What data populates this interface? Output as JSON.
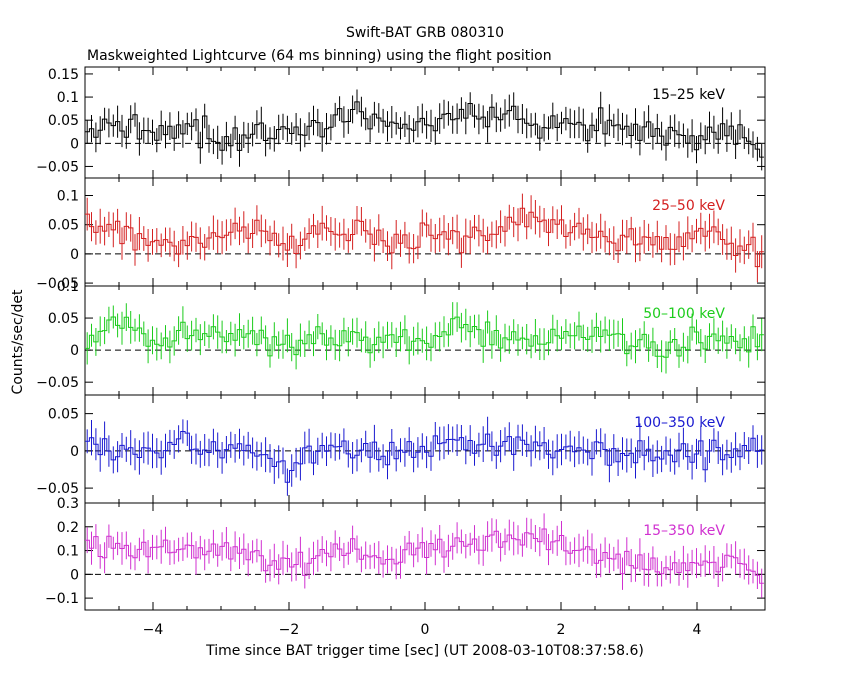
{
  "header": {
    "title": "Swift-BAT GRB 080310",
    "subtitle": "Maskweighted Lightcurve (64 ms binning) using the flight position"
  },
  "axes": {
    "xlabel": "Time since BAT trigger time [sec] (UT 2008-03-10T08:37:58.6)",
    "ylabel": "Counts/sec/det"
  },
  "chart_data": {
    "type": "line",
    "title": "Swift-BAT GRB 080310",
    "subtitle": "Maskweighted Lightcurve (64 ms binning) using the flight position",
    "xlabel": "Time since BAT trigger time [sec] (UT 2008-03-10T08:37:58.6)",
    "ylabel": "Counts/sec/det",
    "xlim": [
      -5,
      5
    ],
    "x_ticks": [
      -4,
      -2,
      0,
      2,
      4
    ],
    "x_tick_labels": [
      "−4",
      "−2",
      "0",
      "2",
      "4"
    ],
    "bin_width_sec": 0.064,
    "zero_line": "dashed",
    "panels": [
      {
        "name": "15–25 keV",
        "color": "#000000",
        "ylim": [
          -0.075,
          0.165
        ],
        "yticks": [
          -0.05,
          0,
          0.05,
          0.1,
          0.15
        ],
        "ytick_labels": [
          "−0.05",
          "0",
          "0.05",
          "0.1",
          "0.15"
        ],
        "typical_error": 0.03,
        "anchor_t": [
          -5.0,
          -4.5,
          -4.0,
          -3.5,
          -3.0,
          -2.5,
          -2.0,
          -1.5,
          -1.0,
          -0.5,
          0.0,
          0.5,
          1.0,
          1.5,
          2.0,
          2.5,
          3.0,
          3.5,
          4.0,
          4.5,
          5.0
        ],
        "anchor_y": [
          0.02,
          0.03,
          0.02,
          0.05,
          0.0,
          0.03,
          0.01,
          0.04,
          0.07,
          0.03,
          0.04,
          0.06,
          0.07,
          0.05,
          0.04,
          0.04,
          0.05,
          0.02,
          0.01,
          0.03,
          -0.02
        ]
      },
      {
        "name": "25–50 keV",
        "color": "#d42020",
        "ylim": [
          -0.055,
          0.13
        ],
        "yticks": [
          -0.05,
          0,
          0.05,
          0.1
        ],
        "ytick_labels": [
          "−0.05",
          "0",
          "0.05",
          "0.1"
        ],
        "typical_error": 0.025,
        "anchor_t": [
          -5.0,
          -4.5,
          -4.0,
          -3.5,
          -3.0,
          -2.5,
          -2.0,
          -1.5,
          -1.0,
          -0.5,
          0.0,
          0.5,
          1.0,
          1.5,
          2.0,
          2.5,
          3.0,
          3.5,
          4.0,
          4.5,
          5.0
        ],
        "anchor_y": [
          0.05,
          0.04,
          0.02,
          0.03,
          0.02,
          0.04,
          0.02,
          0.04,
          0.03,
          0.02,
          0.03,
          0.02,
          0.03,
          0.07,
          0.05,
          0.03,
          0.02,
          0.02,
          0.03,
          0.02,
          0.0
        ]
      },
      {
        "name": "50–100 keV",
        "color": "#1ccc1c",
        "ylim": [
          -0.07,
          0.1
        ],
        "yticks": [
          -0.05,
          0,
          0.05,
          0.1
        ],
        "ytick_labels": [
          "−0.05",
          "0",
          "0.05",
          "0.1"
        ],
        "typical_error": 0.022,
        "anchor_t": [
          -5.0,
          -4.5,
          -4.0,
          -3.5,
          -3.0,
          -2.5,
          -2.0,
          -1.5,
          -1.0,
          -0.5,
          0.0,
          0.5,
          1.0,
          1.5,
          2.0,
          2.5,
          3.0,
          3.5,
          4.0,
          4.5,
          5.0
        ],
        "anchor_y": [
          0.02,
          0.05,
          0.01,
          0.03,
          0.02,
          0.02,
          0.01,
          0.02,
          0.01,
          0.02,
          0.01,
          0.04,
          0.02,
          0.02,
          0.02,
          0.03,
          0.02,
          0.0,
          0.02,
          0.01,
          0.01
        ]
      },
      {
        "name": "100–350 keV",
        "color": "#1a1ad0",
        "ylim": [
          -0.07,
          0.075
        ],
        "yticks": [
          -0.05,
          0,
          0.05
        ],
        "ytick_labels": [
          "−0.05",
          "0",
          "0.05"
        ],
        "typical_error": 0.02,
        "anchor_t": [
          -5.0,
          -4.5,
          -4.0,
          -3.5,
          -3.0,
          -2.5,
          -2.0,
          -1.5,
          -1.0,
          -0.5,
          0.0,
          0.5,
          1.0,
          1.5,
          2.0,
          2.5,
          3.0,
          3.5,
          4.0,
          4.5,
          5.0
        ],
        "anchor_y": [
          0.02,
          0.0,
          0.0,
          0.01,
          -0.01,
          0.0,
          -0.03,
          0.01,
          0.0,
          0.0,
          0.0,
          0.02,
          0.0,
          0.01,
          0.0,
          0.0,
          0.0,
          -0.01,
          0.0,
          0.0,
          0.0
        ]
      },
      {
        "name": "15–350 keV",
        "color": "#d030d0",
        "ylim": [
          -0.15,
          0.3
        ],
        "yticks": [
          -0.1,
          0,
          0.1,
          0.2,
          0.3
        ],
        "ytick_labels": [
          "−0.1",
          "0",
          "0.1",
          "0.2",
          "0.3"
        ],
        "typical_error": 0.06,
        "anchor_t": [
          -5.0,
          -4.5,
          -4.0,
          -3.5,
          -3.0,
          -2.5,
          -2.0,
          -1.5,
          -1.0,
          -0.5,
          0.0,
          0.5,
          1.0,
          1.5,
          2.0,
          2.5,
          3.0,
          3.5,
          4.0,
          4.5,
          5.0
        ],
        "anchor_y": [
          0.12,
          0.13,
          0.08,
          0.11,
          0.09,
          0.07,
          0.03,
          0.1,
          0.1,
          0.06,
          0.1,
          0.14,
          0.13,
          0.16,
          0.15,
          0.07,
          0.05,
          0.02,
          0.05,
          0.05,
          -0.02
        ]
      }
    ]
  }
}
